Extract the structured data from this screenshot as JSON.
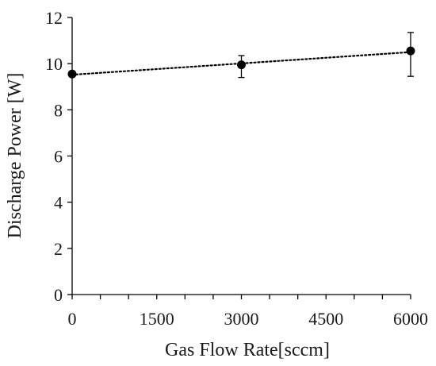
{
  "chart_data": {
    "type": "scatter",
    "title": "",
    "xlabel": "Gas Flow Rate[sccm]",
    "ylabel": "Discharge Power [W]",
    "xlim": [
      0,
      6000
    ],
    "ylim": [
      0,
      12
    ],
    "x_ticks": [
      0,
      1500,
      3000,
      4500,
      6000
    ],
    "x_tick_labels": [
      "0",
      "1500",
      "3000",
      "4500",
      "6000"
    ],
    "x_minor_tick_step": 500,
    "y_ticks": [
      0,
      2,
      4,
      6,
      8,
      10,
      12
    ],
    "y_tick_labels": [
      "0",
      "2",
      "4",
      "6",
      "8",
      "10",
      "12"
    ],
    "grid": false,
    "legend": "none",
    "series": [
      {
        "x": [
          0,
          3000,
          6000
        ],
        "y": [
          9.55,
          9.95,
          10.55
        ],
        "error_low": [
          9.55,
          9.4,
          9.45
        ],
        "error_high": [
          9.55,
          10.35,
          11.35
        ]
      }
    ],
    "trendline": {
      "style": "dotted",
      "x": [
        0,
        6000
      ],
      "y": [
        9.52,
        10.5
      ]
    },
    "colors": {
      "marker": "#000000",
      "axis": "#000000",
      "trendline": "#000000"
    }
  }
}
